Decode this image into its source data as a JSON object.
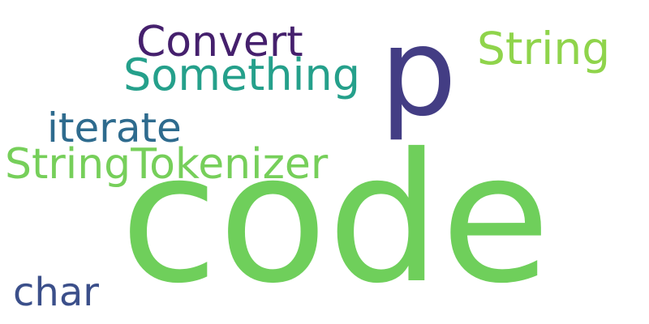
{
  "words": [
    {
      "id": "code",
      "text": "code",
      "color": "#6fcf5b"
    },
    {
      "id": "p",
      "text": "p",
      "color": "#433d84"
    },
    {
      "id": "convert",
      "text": "Convert",
      "color": "#45206d"
    },
    {
      "id": "something",
      "text": "Something",
      "color": "#25a08b"
    },
    {
      "id": "string",
      "text": "String",
      "color": "#8fd44b"
    },
    {
      "id": "iterate",
      "text": "iterate",
      "color": "#2e6b8e"
    },
    {
      "id": "tokenizer",
      "text": "StringTokenizer",
      "color": "#76cf5a"
    },
    {
      "id": "char",
      "text": "char",
      "color": "#3b4f8a"
    }
  ]
}
